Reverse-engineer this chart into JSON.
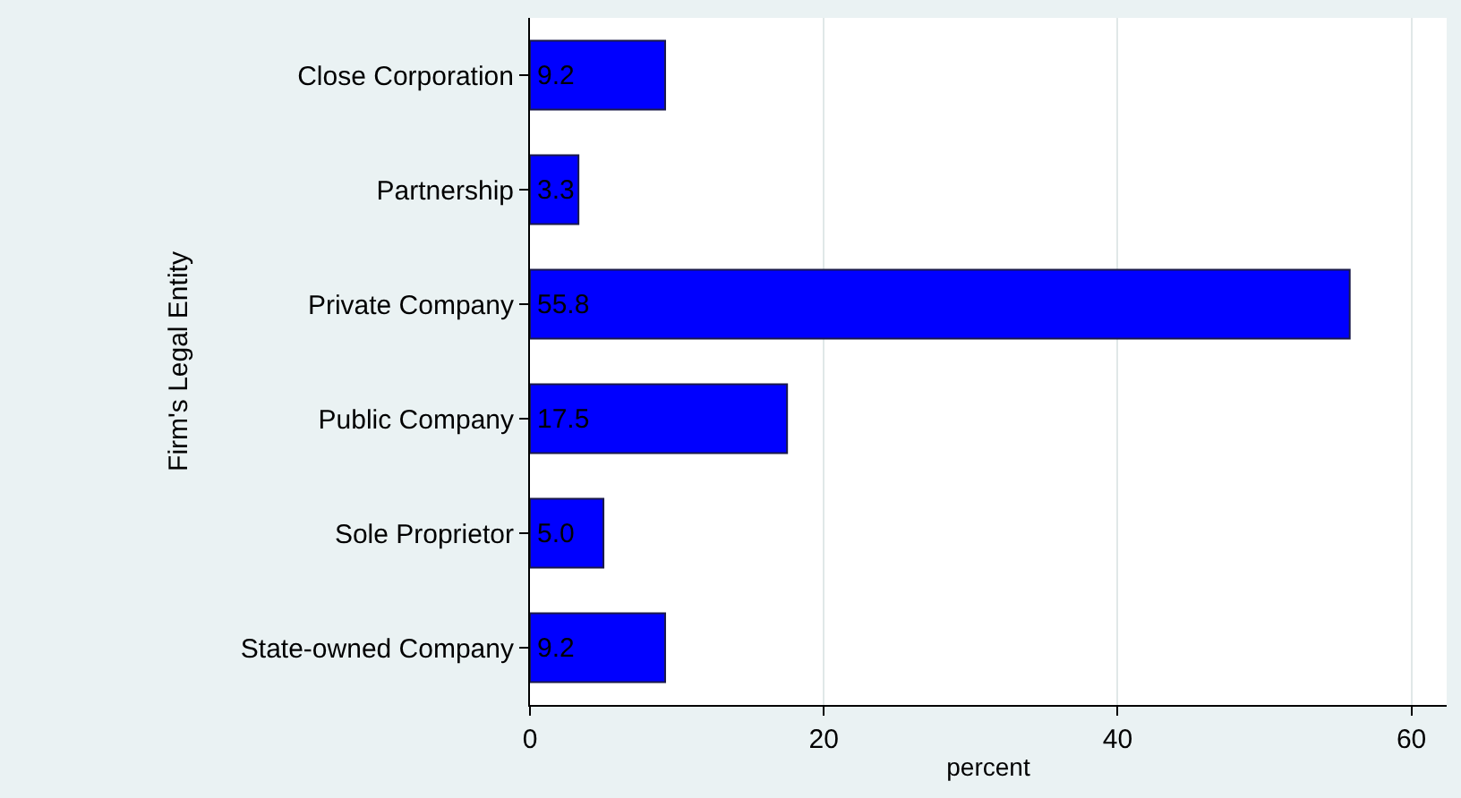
{
  "chart_data": {
    "type": "bar",
    "orientation": "horizontal",
    "xlabel": "percent",
    "ylabel": "Firm's Legal Entity",
    "categories": [
      "Close Corporation",
      "Partnership",
      "Private Company",
      "Public Company",
      "Sole Proprietor",
      "State-owned Company"
    ],
    "values": [
      9.2,
      3.3,
      55.8,
      17.5,
      5.0,
      9.2
    ],
    "color": "#0000ff",
    "value_labels": [
      "9.2",
      "3.3",
      "55.8",
      "17.5",
      "5.0",
      "9.2"
    ],
    "xlim": [
      0,
      62.4
    ],
    "xticks": [
      0,
      20,
      40,
      60
    ],
    "grid": "x"
  }
}
